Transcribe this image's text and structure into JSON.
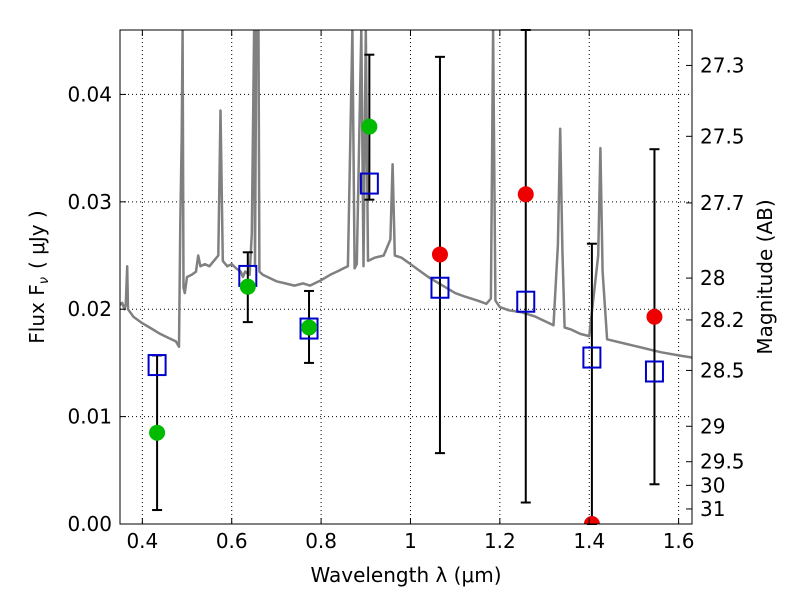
{
  "chart_data": {
    "type": "scatter",
    "xlabel": "Wavelength  λ (μm)",
    "ylabel": "Flux  F",
    "ylabel_sub": "ν",
    "ylabel_unit": "( μJy )",
    "y2label": "Magnitude (AB)",
    "xlim": [
      0.35,
      1.63
    ],
    "ylim": [
      0.0,
      0.046
    ],
    "x_ticks": [
      0.4,
      0.6,
      0.8,
      1.0,
      1.2,
      1.4,
      1.6
    ],
    "x_tick_labels": [
      "0.4",
      "0.6",
      "0.8",
      "1",
      "1.2",
      "1.4",
      "1.6"
    ],
    "y_ticks": [
      0.0,
      0.01,
      0.02,
      0.03,
      0.04
    ],
    "y_tick_labels": [
      "0.00",
      "0.01",
      "0.02",
      "0.03",
      "0.04"
    ],
    "mag_ticks": [
      {
        "flux": 0.0427,
        "label": "27.3"
      },
      {
        "flux": 0.0361,
        "label": "27.5"
      },
      {
        "flux": 0.0299,
        "label": "27.7"
      },
      {
        "flux": 0.0229,
        "label": "28"
      },
      {
        "flux": 0.019,
        "label": "28.2"
      },
      {
        "flux": 0.0143,
        "label": "28.5"
      },
      {
        "flux": 0.0091,
        "label": "29"
      },
      {
        "flux": 0.0058,
        "label": "29.5"
      },
      {
        "flux": 0.0036,
        "label": "30"
      },
      {
        "flux": 0.0014,
        "label": "31"
      }
    ],
    "grid": true,
    "series": [
      {
        "kind": "spectrum",
        "color": "#808080",
        "points": [
          [
            0.35,
            0.0204
          ],
          [
            0.355,
            0.0206
          ],
          [
            0.36,
            0.02
          ],
          [
            0.363,
            0.0205
          ],
          [
            0.366,
            0.024
          ],
          [
            0.368,
            0.02
          ],
          [
            0.38,
            0.0193
          ],
          [
            0.4,
            0.0187
          ],
          [
            0.42,
            0.0182
          ],
          [
            0.44,
            0.0177
          ],
          [
            0.46,
            0.0173
          ],
          [
            0.475,
            0.017
          ],
          [
            0.482,
            0.0165
          ],
          [
            0.485,
            0.028
          ],
          [
            0.488,
            0.036
          ],
          [
            0.49,
            0.046
          ],
          [
            0.492,
            0.022
          ],
          [
            0.495,
            0.0215
          ],
          [
            0.5,
            0.023
          ],
          [
            0.51,
            0.0232
          ],
          [
            0.52,
            0.0235
          ],
          [
            0.525,
            0.025
          ],
          [
            0.53,
            0.024
          ],
          [
            0.54,
            0.0242
          ],
          [
            0.55,
            0.024
          ],
          [
            0.56,
            0.0245
          ],
          [
            0.57,
            0.025
          ],
          [
            0.575,
            0.0385
          ],
          [
            0.58,
            0.0245
          ],
          [
            0.59,
            0.024
          ],
          [
            0.6,
            0.0242
          ],
          [
            0.61,
            0.0238
          ],
          [
            0.62,
            0.0235
          ],
          [
            0.625,
            0.023
          ],
          [
            0.63,
            0.0235
          ],
          [
            0.64,
            0.0232
          ],
          [
            0.645,
            0.027
          ],
          [
            0.65,
            0.046
          ],
          [
            0.652,
            0.024
          ],
          [
            0.655,
            0.046
          ],
          [
            0.66,
            0.046
          ],
          [
            0.662,
            0.0235
          ],
          [
            0.67,
            0.0232
          ],
          [
            0.68,
            0.023
          ],
          [
            0.7,
            0.0226
          ],
          [
            0.72,
            0.0224
          ],
          [
            0.74,
            0.0222
          ],
          [
            0.76,
            0.0224
          ],
          [
            0.775,
            0.0222
          ],
          [
            0.8,
            0.0227
          ],
          [
            0.82,
            0.0232
          ],
          [
            0.84,
            0.0236
          ],
          [
            0.85,
            0.0238
          ],
          [
            0.86,
            0.024
          ],
          [
            0.87,
            0.046
          ],
          [
            0.875,
            0.0238
          ],
          [
            0.88,
            0.0242
          ],
          [
            0.89,
            0.046
          ],
          [
            0.895,
            0.024
          ],
          [
            0.9,
            0.046
          ],
          [
            0.905,
            0.0245
          ],
          [
            0.92,
            0.0248
          ],
          [
            0.94,
            0.025
          ],
          [
            0.955,
            0.0265
          ],
          [
            0.96,
            0.0335
          ],
          [
            0.965,
            0.025
          ],
          [
            0.98,
            0.0248
          ],
          [
            1.0,
            0.0242
          ],
          [
            1.02,
            0.0236
          ],
          [
            1.04,
            0.023
          ],
          [
            1.06,
            0.0225
          ],
          [
            1.08,
            0.022
          ],
          [
            1.1,
            0.0215
          ],
          [
            1.12,
            0.0212
          ],
          [
            1.15,
            0.0208
          ],
          [
            1.17,
            0.0205
          ],
          [
            1.18,
            0.021
          ],
          [
            1.185,
            0.046
          ],
          [
            1.19,
            0.0208
          ],
          [
            1.2,
            0.0202
          ],
          [
            1.22,
            0.0199
          ],
          [
            1.25,
            0.0197
          ],
          [
            1.28,
            0.0193
          ],
          [
            1.3,
            0.0189
          ],
          [
            1.32,
            0.0185
          ],
          [
            1.33,
            0.026
          ],
          [
            1.335,
            0.0368
          ],
          [
            1.34,
            0.0255
          ],
          [
            1.345,
            0.0183
          ],
          [
            1.36,
            0.0181
          ],
          [
            1.38,
            0.0177
          ],
          [
            1.4,
            0.0175
          ],
          [
            1.42,
            0.025
          ],
          [
            1.425,
            0.035
          ],
          [
            1.43,
            0.0235
          ],
          [
            1.44,
            0.0172
          ],
          [
            1.48,
            0.0168
          ],
          [
            1.52,
            0.0164
          ],
          [
            1.56,
            0.016
          ],
          [
            1.6,
            0.0157
          ],
          [
            1.63,
            0.0155
          ]
        ]
      },
      {
        "kind": "points",
        "marker": "square",
        "color": "#0000cc",
        "points": [
          {
            "x": 0.433,
            "y": 0.0148
          },
          {
            "x": 0.636,
            "y": 0.0231
          },
          {
            "x": 0.773,
            "y": 0.0182
          },
          {
            "x": 0.908,
            "y": 0.0317
          },
          {
            "x": 1.066,
            "y": 0.022
          },
          {
            "x": 1.258,
            "y": 0.0207
          },
          {
            "x": 1.406,
            "y": 0.0155
          },
          {
            "x": 1.546,
            "y": 0.0142
          }
        ]
      },
      {
        "kind": "points",
        "marker": "circle",
        "color": "#00bb00",
        "points": [
          {
            "x": 0.433,
            "y": 0.0085,
            "err_lo": 0.0013,
            "err_hi": 0.0157
          },
          {
            "x": 0.636,
            "y": 0.0221,
            "err_lo": 0.0188,
            "err_hi": 0.0253
          },
          {
            "x": 0.773,
            "y": 0.0183,
            "err_lo": 0.015,
            "err_hi": 0.0217
          },
          {
            "x": 0.908,
            "y": 0.037,
            "err_lo": 0.0302,
            "err_hi": 0.0437
          }
        ]
      },
      {
        "kind": "points",
        "marker": "circle",
        "color": "#ee0000",
        "points": [
          {
            "x": 1.066,
            "y": 0.0251,
            "err_lo": 0.0066,
            "err_hi": 0.0435
          },
          {
            "x": 1.258,
            "y": 0.0307,
            "err_lo": 0.002,
            "err_hi": 0.046
          },
          {
            "x": 1.406,
            "y": 0.0,
            "err_lo": 0.0,
            "err_hi": 0.0261
          },
          {
            "x": 1.546,
            "y": 0.0193,
            "err_lo": 0.0037,
            "err_hi": 0.0349
          }
        ]
      }
    ]
  }
}
